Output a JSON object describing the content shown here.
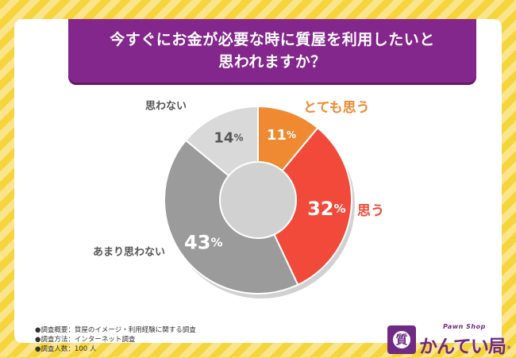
{
  "title": {
    "line1": "今すぐにお金が必要な時に質屋を利用したいと",
    "line2": "思われますか？"
  },
  "chart_data": {
    "type": "pie",
    "donut": true,
    "start": "top, clockwise",
    "percent_suffix": "%",
    "slices": [
      {
        "label": "とても思う",
        "value": 11,
        "color": "#ef8a32",
        "label_color": "#ef8a32"
      },
      {
        "label": "思う",
        "value": 32,
        "color": "#f24a3a",
        "label_color": "#f24a3a"
      },
      {
        "label": "あまり思わない",
        "value": 43,
        "color": "#9b9b9b",
        "label_color": "#555555"
      },
      {
        "label": "思わない",
        "value": 14,
        "color": "#d9d9d9",
        "label_color": "#555555"
      }
    ]
  },
  "notes": [
    "●調査概要：質屋のイメージ・利用経験に関する調査",
    "●調査方法：インターネット調査",
    "●調査人数：100 人"
  ],
  "logo": {
    "subtitle": "Pawn Shop",
    "name": "かんてい局",
    "badge_char": "質",
    "registered": "®",
    "color": "#6f2a86"
  },
  "colors": {
    "background_stripe_1": "#f5d43c",
    "background_stripe_2": "#fae58c",
    "banner": "#83278c"
  }
}
